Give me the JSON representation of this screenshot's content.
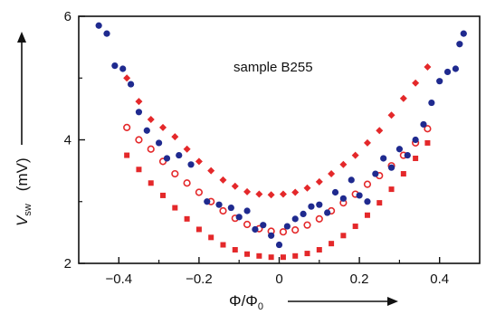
{
  "chart_data": {
    "type": "scatter",
    "annotation": "sample B255",
    "xlabel": "Φ/Φ",
    "xlabel_sub": "0",
    "ylabel_main": "V",
    "ylabel_sub": "sw",
    "ylabel_unit": "(mV)",
    "xlim": [
      -0.5,
      0.5
    ],
    "ylim": [
      2,
      6
    ],
    "xticks": [
      -0.4,
      -0.2,
      0,
      0.2,
      0.4
    ],
    "xtick_labels": [
      "−0.4",
      "−0.2",
      "0",
      "0.2",
      "0.4"
    ],
    "yticks": [
      2,
      4,
      6
    ],
    "ytick_labels": [
      "2",
      "4",
      "6"
    ],
    "grid": false,
    "colors": {
      "red": "#e4282a",
      "blue": "#1f2a8f"
    },
    "series": [
      {
        "marker": "diamond",
        "color": "#e4282a",
        "x": [
          -0.38,
          -0.35,
          -0.32,
          -0.29,
          -0.26,
          -0.23,
          -0.2,
          -0.17,
          -0.14,
          -0.11,
          -0.08,
          -0.05,
          -0.02,
          0.01,
          0.04,
          0.07,
          0.1,
          0.13,
          0.16,
          0.19,
          0.22,
          0.25,
          0.28,
          0.31,
          0.34,
          0.37
        ],
        "y": [
          5.0,
          4.62,
          4.33,
          4.2,
          4.05,
          3.85,
          3.65,
          3.5,
          3.35,
          3.25,
          3.16,
          3.12,
          3.11,
          3.12,
          3.15,
          3.22,
          3.32,
          3.45,
          3.6,
          3.75,
          3.95,
          4.15,
          4.4,
          4.67,
          4.92,
          5.18
        ]
      },
      {
        "marker": "circle-outline",
        "color": "#e4282a",
        "x": [
          -0.38,
          -0.35,
          -0.32,
          -0.29,
          -0.26,
          -0.23,
          -0.2,
          -0.17,
          -0.14,
          -0.11,
          -0.08,
          -0.05,
          -0.02,
          0.01,
          0.04,
          0.07,
          0.1,
          0.13,
          0.16,
          0.19,
          0.22,
          0.25,
          0.28,
          0.31,
          0.34,
          0.37
        ],
        "y": [
          4.2,
          4.0,
          3.85,
          3.65,
          3.45,
          3.3,
          3.15,
          3.0,
          2.85,
          2.73,
          2.63,
          2.56,
          2.52,
          2.51,
          2.54,
          2.62,
          2.72,
          2.85,
          2.98,
          3.12,
          3.28,
          3.42,
          3.58,
          3.75,
          3.95,
          4.18
        ]
      },
      {
        "marker": "square",
        "color": "#e4282a",
        "x": [
          -0.38,
          -0.35,
          -0.32,
          -0.29,
          -0.26,
          -0.23,
          -0.2,
          -0.17,
          -0.14,
          -0.11,
          -0.08,
          -0.05,
          -0.02,
          0.01,
          0.04,
          0.07,
          0.1,
          0.13,
          0.16,
          0.19,
          0.22,
          0.25,
          0.28,
          0.31,
          0.34,
          0.37
        ],
        "y": [
          3.75,
          3.52,
          3.3,
          3.1,
          2.9,
          2.72,
          2.55,
          2.42,
          2.3,
          2.22,
          2.15,
          2.12,
          2.1,
          2.1,
          2.12,
          2.16,
          2.22,
          2.32,
          2.45,
          2.6,
          2.78,
          2.98,
          3.2,
          3.45,
          3.7,
          3.95
        ]
      },
      {
        "marker": "circle",
        "color": "#1f2a8f",
        "x": [
          -0.45,
          -0.43,
          -0.41,
          -0.39,
          -0.37,
          -0.35,
          -0.33,
          -0.3,
          -0.28,
          -0.25,
          -0.22,
          -0.18,
          -0.15,
          -0.12,
          -0.1,
          -0.08,
          -0.06,
          -0.04,
          -0.02,
          0.0,
          0.02,
          0.04,
          0.06,
          0.08,
          0.1,
          0.12,
          0.14,
          0.16,
          0.18,
          0.2,
          0.22,
          0.24,
          0.26,
          0.28,
          0.3,
          0.32,
          0.34,
          0.36,
          0.38,
          0.4,
          0.42,
          0.44,
          0.45,
          0.46
        ],
        "y": [
          5.85,
          5.72,
          5.2,
          5.15,
          4.9,
          4.45,
          4.15,
          3.95,
          3.7,
          3.75,
          3.6,
          3.0,
          2.95,
          2.9,
          2.75,
          2.85,
          2.55,
          2.62,
          2.45,
          2.3,
          2.6,
          2.72,
          2.8,
          2.92,
          2.95,
          2.82,
          3.15,
          3.05,
          3.35,
          3.1,
          3.0,
          3.45,
          3.7,
          3.55,
          3.85,
          3.75,
          4.0,
          4.25,
          4.6,
          4.95,
          5.1,
          5.15,
          5.55,
          5.72
        ]
      }
    ]
  }
}
